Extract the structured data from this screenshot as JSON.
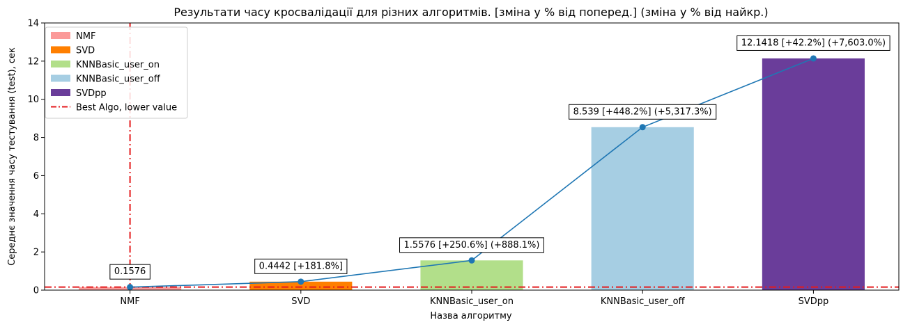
{
  "chart_data": {
    "type": "bar",
    "title": "Результати часу кросвалідації для різних алгоритмів. [зміна у % від поперед.] (зміна у % від найкр.)",
    "xlabel": "Назва алгоритму",
    "ylabel": "Середнє значення часу тестування (test), сек",
    "categories": [
      "NMF",
      "SVD",
      "KNNBasic_user_on",
      "KNNBasic_user_off",
      "SVDpp"
    ],
    "values": [
      0.1576,
      0.4442,
      1.5576,
      8.539,
      12.1418
    ],
    "bar_colors": [
      "#fb9a99",
      "#ff7f00",
      "#b2df8a",
      "#a6cee3",
      "#6a3d9a"
    ],
    "bar_labels": [
      "0.1576",
      "0.4442 [+181.8%]",
      "1.5576 [+250.6%] (+888.1%)",
      "8.539 [+448.2%] (+5,317.3%)",
      "12.1418 [+42.2%] (+7,603.0%)"
    ],
    "line": {
      "values": [
        0.1576,
        0.4442,
        1.5576,
        8.539,
        12.1418
      ],
      "color": "#1f77b4"
    },
    "reference_line": {
      "name": "Best Algo, lower value",
      "value": 0.1576,
      "color": "#e41a1c",
      "style": "dashdot",
      "vertical_at": "NMF"
    },
    "ylim": [
      0,
      14
    ],
    "yticks": [
      0,
      2,
      4,
      6,
      8,
      10,
      12,
      14
    ],
    "grid": false,
    "legend": {
      "placement": "top-left",
      "entries": [
        {
          "label": "NMF",
          "color": "#fb9a99",
          "kind": "patch"
        },
        {
          "label": "SVD",
          "color": "#ff7f00",
          "kind": "patch"
        },
        {
          "label": "KNNBasic_user_on",
          "color": "#b2df8a",
          "kind": "patch"
        },
        {
          "label": "KNNBasic_user_off",
          "color": "#a6cee3",
          "kind": "patch"
        },
        {
          "label": "SVDpp",
          "color": "#6a3d9a",
          "kind": "patch"
        },
        {
          "label": "Best Algo, lower value",
          "color": "#e41a1c",
          "kind": "dashdot"
        }
      ]
    }
  }
}
